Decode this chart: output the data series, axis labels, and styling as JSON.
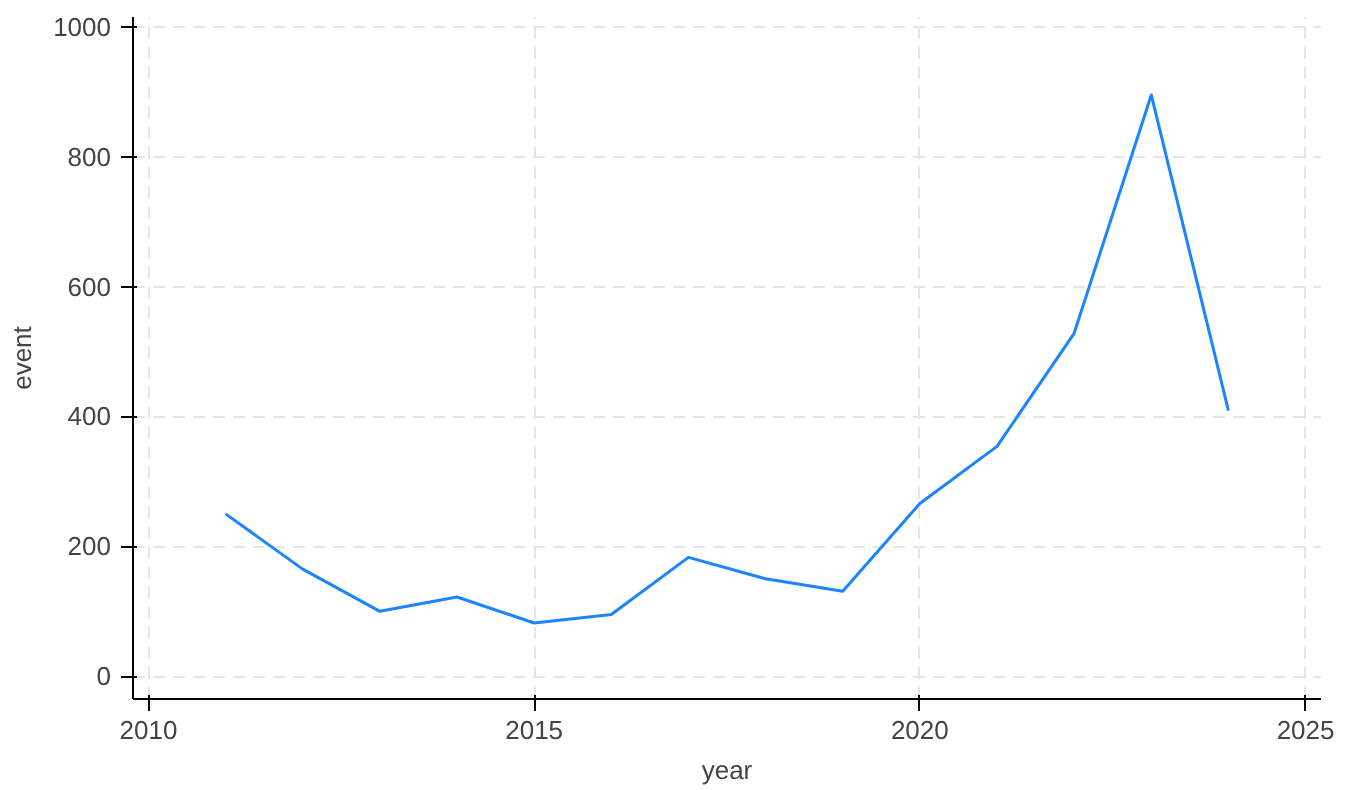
{
  "chart_data": {
    "type": "line",
    "xlabel": "year",
    "ylabel": "event",
    "x": [
      2011,
      2012,
      2013,
      2014,
      2015,
      2016,
      2017,
      2018,
      2019,
      2020,
      2021,
      2022,
      2023,
      2024
    ],
    "series": [
      {
        "color": "#1a85ff",
        "values": [
          250,
          165,
          100,
          122,
          82,
          95,
          183,
          150,
          131,
          266,
          354,
          528,
          895,
          409
        ]
      }
    ],
    "xlim": [
      2009.8,
      2025.2
    ],
    "ylim": [
      -35,
      1015
    ],
    "xticks": [
      2010,
      2015,
      2020,
      2025
    ],
    "yticks": [
      0,
      200,
      400,
      600,
      800,
      1000
    ],
    "grid": true,
    "line_style": "solid",
    "marker": "none"
  }
}
